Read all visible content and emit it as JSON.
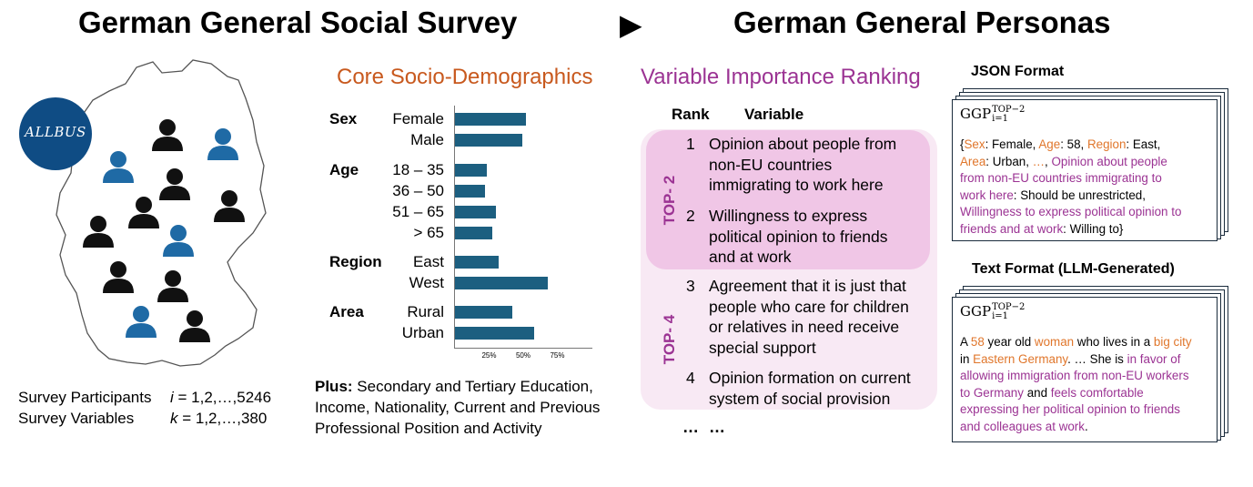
{
  "titles": {
    "left": "German General Social Survey",
    "arrow": "▶",
    "right": "German General Personas"
  },
  "logo": {
    "text": "ALLBUS"
  },
  "survey": {
    "participants_label": "Survey Participants",
    "participants_var": "i",
    "participants_range": " = 1,2,…,5246",
    "variables_label": "Survey Variables",
    "variables_var": "k",
    "variables_range": " = 1,2,…,380"
  },
  "socio": {
    "title": "Core Socio-Demographics",
    "groups": [
      {
        "name": "Sex",
        "items": [
          {
            "label": "Female",
            "value": 52
          },
          {
            "label": "Male",
            "value": 49
          }
        ]
      },
      {
        "name": "Age",
        "items": [
          {
            "label": "18 – 35",
            "value": 23
          },
          {
            "label": "36 – 50",
            "value": 22
          },
          {
            "label": "51 – 65",
            "value": 30
          },
          {
            "label": "> 65",
            "value": 27
          }
        ]
      },
      {
        "name": "Region",
        "items": [
          {
            "label": "East",
            "value": 32
          },
          {
            "label": "West",
            "value": 68
          }
        ]
      },
      {
        "name": "Area",
        "items": [
          {
            "label": "Rural",
            "value": 42
          },
          {
            "label": "Urban",
            "value": 58
          }
        ]
      }
    ],
    "ticks": [
      "25%",
      "50%",
      "75%"
    ],
    "plus_bold": "Plus:",
    "plus_lines": [
      " Secondary and Tertiary Education,",
      "Income, Nationality, Current and Previous",
      "Professional Position and Activity"
    ]
  },
  "ranking": {
    "title": "Variable Importance Ranking",
    "col_rank": "Rank",
    "col_variable": "Variable",
    "top2_label": "TOP- 2",
    "top4_label": "TOP- 4",
    "items": [
      {
        "rank": "1",
        "lines": [
          "Opinion about people from",
          "non-EU countries",
          "immigrating to work here"
        ]
      },
      {
        "rank": "2",
        "lines": [
          "Willingness to express",
          "political opinion to friends",
          "and at work"
        ]
      },
      {
        "rank": "3",
        "lines": [
          "Agreement that it is just that",
          "people who care for children",
          "or relatives in need receive",
          "special support"
        ]
      },
      {
        "rank": "4",
        "lines": [
          "Opinion formation on current",
          "system of social provision"
        ]
      }
    ],
    "ellipsis_rank": "…",
    "ellipsis_var": "…"
  },
  "json_format": {
    "title": "JSON Format",
    "ggp_base": "GGP",
    "ggp_sup": "TOP−2",
    "ggp_sub": "i=1",
    "lines": [
      [
        {
          "t": "{"
        },
        {
          "t": "Sex",
          "c": "o"
        },
        {
          "t": ": Female, "
        },
        {
          "t": "Age",
          "c": "o"
        },
        {
          "t": ": 58, "
        },
        {
          "t": "Region",
          "c": "o"
        },
        {
          "t": ": East,"
        }
      ],
      [
        {
          "t": "Area",
          "c": "o"
        },
        {
          "t": ": Urban, "
        },
        {
          "t": "…",
          "c": "o"
        },
        {
          "t": ", "
        },
        {
          "t": "Opinion about people",
          "c": "p"
        }
      ],
      [
        {
          "t": "from non-EU countries immigrating to",
          "c": "p"
        }
      ],
      [
        {
          "t": "work here",
          "c": "p"
        },
        {
          "t": ": Should be unrestricted,"
        }
      ],
      [
        {
          "t": "Willingness to express political opinion to",
          "c": "p"
        }
      ],
      [
        {
          "t": "friends and at work",
          "c": "p"
        },
        {
          "t": ": Willing to}"
        }
      ]
    ]
  },
  "text_format": {
    "title": "Text Format (LLM-Generated)",
    "ggp_base": "GGP",
    "ggp_sup": "TOP−2",
    "ggp_sub": "i=1",
    "lines": [
      [
        {
          "t": "A "
        },
        {
          "t": "58",
          "c": "o"
        },
        {
          "t": " year old "
        },
        {
          "t": "woman",
          "c": "o"
        },
        {
          "t": " who lives in a "
        },
        {
          "t": "big city",
          "c": "o"
        }
      ],
      [
        {
          "t": "in "
        },
        {
          "t": "Eastern Germany",
          "c": "o"
        },
        {
          "t": ". … She is "
        },
        {
          "t": "in favor of",
          "c": "p"
        }
      ],
      [
        {
          "t": "allowing immigration from non-EU workers",
          "c": "p"
        }
      ],
      [
        {
          "t": "to Germany",
          "c": "p"
        },
        {
          "t": " and "
        },
        {
          "t": "feels comfortable",
          "c": "p"
        }
      ],
      [
        {
          "t": "expressing her political opinion to friends",
          "c": "p"
        }
      ],
      [
        {
          "t": "and colleagues at work",
          "c": "p"
        },
        {
          "t": "."
        }
      ]
    ]
  }
}
